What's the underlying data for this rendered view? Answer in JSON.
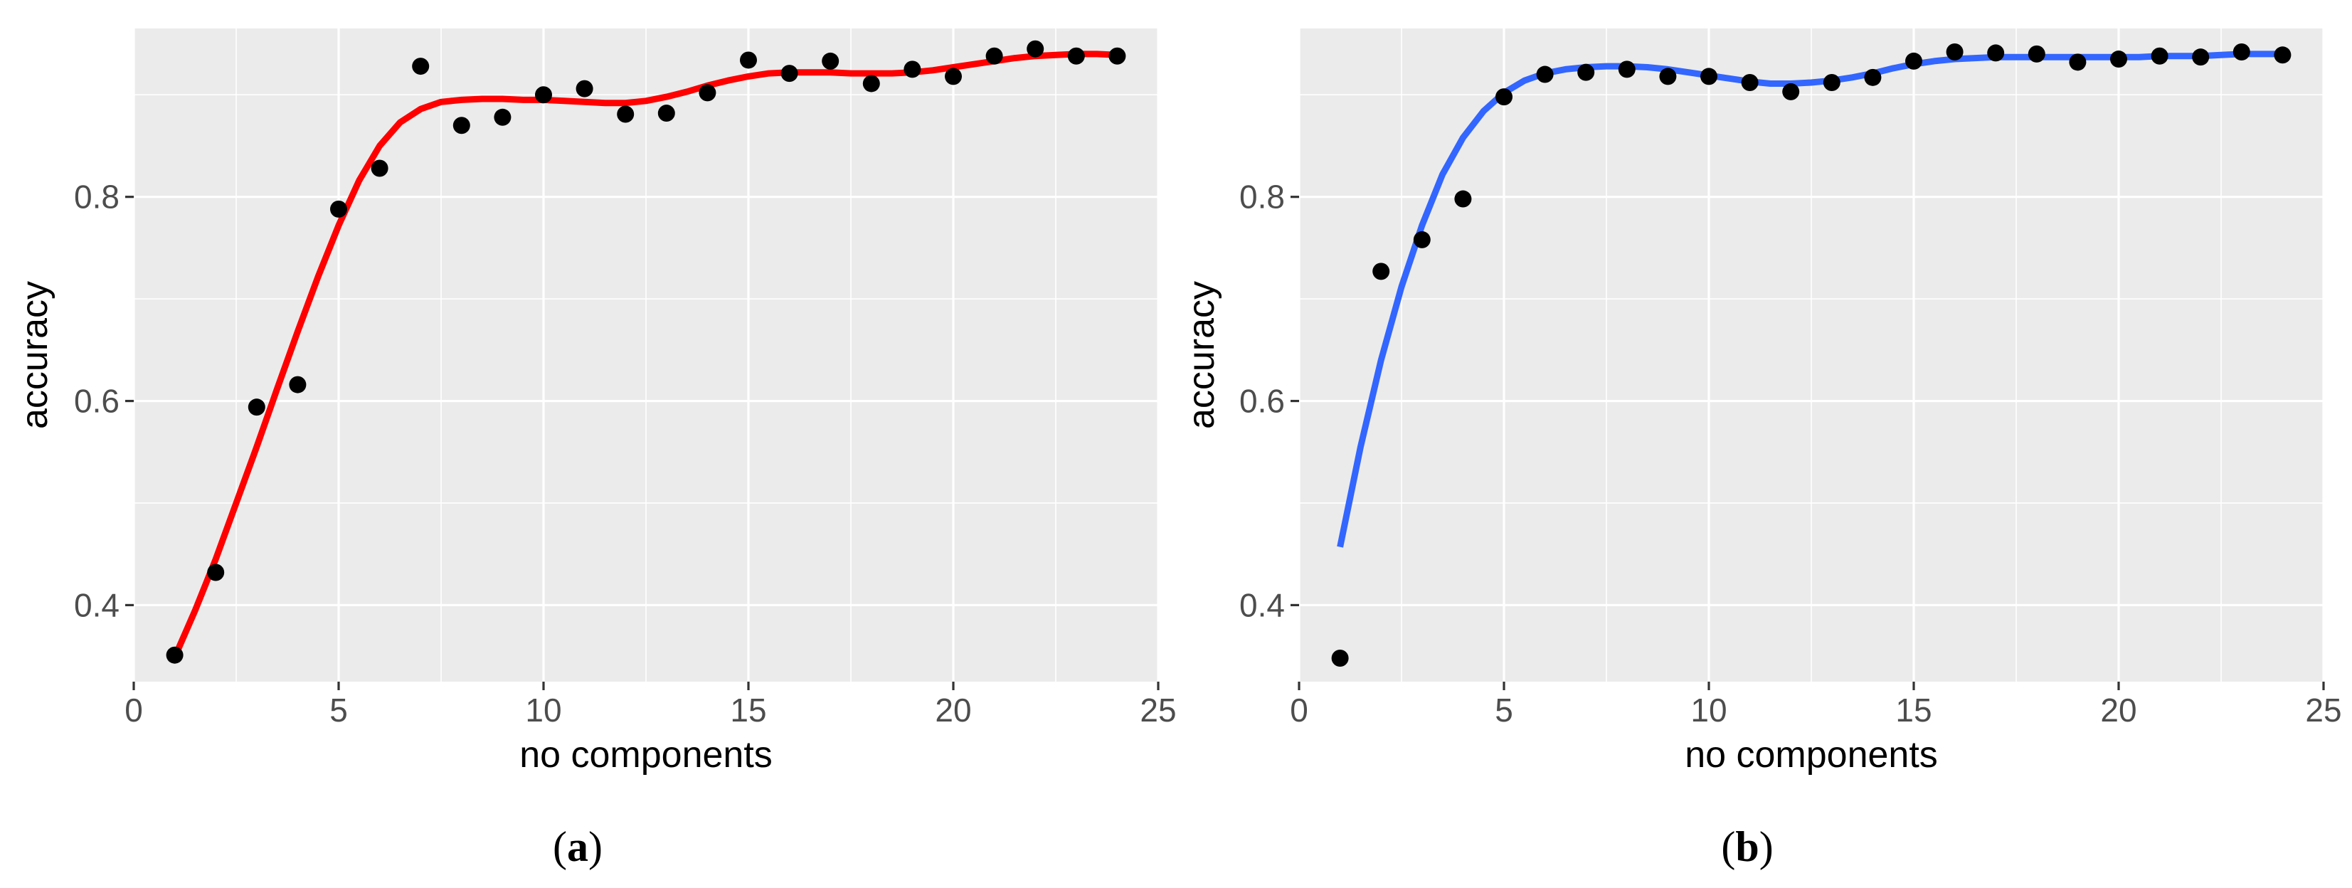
{
  "chart_data": [
    {
      "type": "scatter",
      "panel_label": "a",
      "xlabel": "no components",
      "ylabel": "accuracy",
      "xlim": [
        0,
        25
      ],
      "ylim": [
        0.325,
        0.965
      ],
      "x_ticks": [
        0,
        5,
        10,
        15,
        20,
        25
      ],
      "x_tick_labels": [
        "0",
        "5",
        "10",
        "15",
        "20",
        "25"
      ],
      "y_ticks": [
        0.4,
        0.6,
        0.8
      ],
      "y_tick_labels": [
        "0.4",
        "0.6",
        "0.8"
      ],
      "grid": true,
      "smooth_color": "#ff0000",
      "points": {
        "x": [
          1,
          2,
          3,
          4,
          5,
          6,
          7,
          8,
          9,
          10,
          11,
          12,
          13,
          14,
          15,
          16,
          17,
          18,
          19,
          20,
          21,
          22,
          23,
          24
        ],
        "y": [
          0.351,
          0.432,
          0.594,
          0.616,
          0.788,
          0.828,
          0.928,
          0.87,
          0.878,
          0.9,
          0.906,
          0.881,
          0.882,
          0.902,
          0.934,
          0.921,
          0.933,
          0.911,
          0.925,
          0.918,
          0.938,
          0.945,
          0.938,
          0.938
        ]
      },
      "smooth": {
        "x": [
          1,
          1.5,
          2,
          2.5,
          3,
          3.5,
          4,
          4.5,
          5,
          5.5,
          6,
          6.5,
          7,
          7.5,
          8,
          8.5,
          9,
          9.5,
          10,
          10.5,
          11,
          11.5,
          12,
          12.5,
          13,
          13.5,
          14,
          14.5,
          15,
          15.5,
          16,
          16.5,
          17,
          17.5,
          18,
          18.5,
          19,
          19.5,
          20,
          20.5,
          21,
          21.5,
          22,
          22.5,
          23,
          23.5,
          24
        ],
        "y": [
          0.349,
          0.395,
          0.445,
          0.5,
          0.555,
          0.612,
          0.668,
          0.722,
          0.772,
          0.816,
          0.85,
          0.873,
          0.886,
          0.893,
          0.895,
          0.896,
          0.896,
          0.895,
          0.895,
          0.894,
          0.893,
          0.892,
          0.892,
          0.894,
          0.898,
          0.903,
          0.909,
          0.914,
          0.918,
          0.921,
          0.922,
          0.922,
          0.922,
          0.921,
          0.921,
          0.921,
          0.922,
          0.924,
          0.927,
          0.93,
          0.933,
          0.936,
          0.938,
          0.939,
          0.94,
          0.94,
          0.939
        ]
      }
    },
    {
      "type": "scatter",
      "panel_label": "b",
      "xlabel": "no components",
      "ylabel": "accuracy",
      "xlim": [
        0,
        25
      ],
      "ylim": [
        0.325,
        0.965
      ],
      "x_ticks": [
        0,
        5,
        10,
        15,
        20,
        25
      ],
      "x_tick_labels": [
        "0",
        "5",
        "10",
        "15",
        "20",
        "25"
      ],
      "y_ticks": [
        0.4,
        0.6,
        0.8
      ],
      "y_tick_labels": [
        "0.4",
        "0.6",
        "0.8"
      ],
      "grid": true,
      "smooth_color": "#3366ff",
      "points": {
        "x": [
          1,
          2,
          3,
          4,
          5,
          6,
          7,
          8,
          9,
          10,
          11,
          12,
          13,
          14,
          15,
          16,
          17,
          18,
          19,
          20,
          21,
          22,
          23,
          24
        ],
        "y": [
          0.348,
          0.727,
          0.758,
          0.798,
          0.898,
          0.92,
          0.922,
          0.925,
          0.918,
          0.918,
          0.912,
          0.903,
          0.912,
          0.917,
          0.933,
          0.942,
          0.941,
          0.94,
          0.932,
          0.935,
          0.938,
          0.937,
          0.942,
          0.939
        ]
      },
      "smooth": {
        "x": [
          1,
          1.5,
          2,
          2.5,
          3,
          3.5,
          4,
          4.5,
          5,
          5.5,
          6,
          6.5,
          7,
          7.5,
          8,
          8.5,
          9,
          9.5,
          10,
          10.5,
          11,
          11.5,
          12,
          12.5,
          13,
          13.5,
          14,
          14.5,
          15,
          15.5,
          16,
          16.5,
          17,
          17.5,
          18,
          18.5,
          19,
          19.5,
          20,
          20.5,
          21,
          21.5,
          22,
          22.5,
          23,
          23.5,
          24
        ],
        "y": [
          0.457,
          0.555,
          0.64,
          0.712,
          0.772,
          0.822,
          0.858,
          0.884,
          0.902,
          0.914,
          0.921,
          0.925,
          0.927,
          0.928,
          0.928,
          0.927,
          0.925,
          0.922,
          0.919,
          0.916,
          0.913,
          0.911,
          0.911,
          0.912,
          0.914,
          0.917,
          0.921,
          0.926,
          0.93,
          0.933,
          0.935,
          0.936,
          0.937,
          0.937,
          0.937,
          0.937,
          0.937,
          0.937,
          0.937,
          0.937,
          0.938,
          0.938,
          0.938,
          0.939,
          0.94,
          0.94,
          0.94
        ]
      }
    }
  ]
}
